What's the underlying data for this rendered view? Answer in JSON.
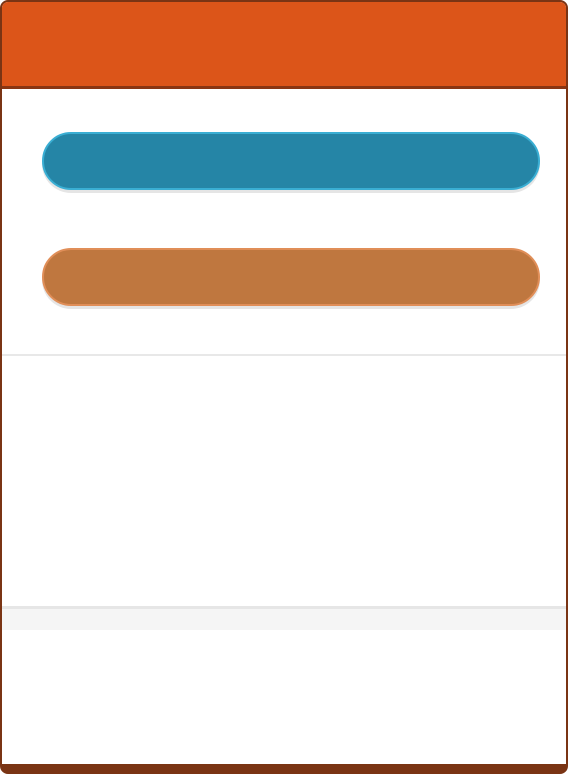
{
  "header": {
    "title": ""
  },
  "actions": {
    "primary_label": "",
    "secondary_label": ""
  },
  "colors": {
    "header_bg": "#dc5519",
    "border": "#7a3414",
    "primary_button": "#2585a6",
    "secondary_button": "#bf773f"
  }
}
